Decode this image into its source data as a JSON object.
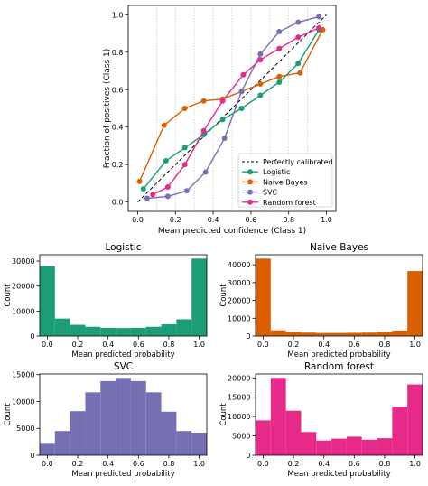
{
  "chart_data": [
    {
      "type": "line",
      "xlabel": "Mean predicted confidence (Class 1)",
      "ylabel": "Fraction of positives (Class 1)",
      "xlim": [
        -0.05,
        1.05
      ],
      "ylim": [
        -0.05,
        1.05
      ],
      "xticks": [
        "0.0",
        "0.2",
        "0.4",
        "0.6",
        "0.8",
        "1.0"
      ],
      "yticks": [
        "0.0",
        "0.2",
        "0.4",
        "0.6",
        "0.8",
        "1.0"
      ],
      "vertical_grid_x": [
        0.1,
        0.2,
        0.3,
        0.4,
        0.5,
        0.6,
        0.7,
        0.8,
        0.9
      ],
      "legend_position": "lower-right",
      "reference_line": {
        "name": "Perfectly calibrated",
        "x": [
          0,
          1
        ],
        "y": [
          0,
          1
        ],
        "style": "dashed",
        "color": "#000000"
      },
      "series": [
        {
          "name": "Logistic",
          "color": "#1b9e77",
          "x": [
            0.03,
            0.15,
            0.25,
            0.35,
            0.45,
            0.55,
            0.65,
            0.75,
            0.85,
            0.96
          ],
          "y": [
            0.07,
            0.22,
            0.29,
            0.36,
            0.44,
            0.5,
            0.57,
            0.64,
            0.74,
            0.92
          ]
        },
        {
          "name": "Naive Bayes",
          "color": "#d95f02",
          "x": [
            0.01,
            0.14,
            0.25,
            0.35,
            0.45,
            0.55,
            0.65,
            0.75,
            0.86,
            0.98
          ],
          "y": [
            0.11,
            0.41,
            0.5,
            0.54,
            0.55,
            0.59,
            0.63,
            0.67,
            0.69,
            0.92
          ]
        },
        {
          "name": "SVC",
          "color": "#7570b3",
          "x": [
            0.05,
            0.16,
            0.26,
            0.36,
            0.46,
            0.55,
            0.65,
            0.75,
            0.85,
            0.96
          ],
          "y": [
            0.02,
            0.03,
            0.06,
            0.16,
            0.34,
            0.59,
            0.79,
            0.91,
            0.96,
            0.99
          ]
        },
        {
          "name": "Random forest",
          "color": "#e7298a",
          "x": [
            0.08,
            0.16,
            0.25,
            0.35,
            0.45,
            0.56,
            0.65,
            0.75,
            0.85,
            0.96
          ],
          "y": [
            0.04,
            0.08,
            0.2,
            0.38,
            0.54,
            0.68,
            0.76,
            0.82,
            0.88,
            0.93
          ]
        }
      ]
    },
    {
      "type": "bar",
      "title": "Logistic",
      "color": "#1b9e77",
      "xlabel": "Mean predicted probability",
      "ylabel": "Count",
      "bins": [
        0.0,
        0.1,
        0.2,
        0.3,
        0.4,
        0.5,
        0.6,
        0.7,
        0.8,
        0.9,
        1.0
      ],
      "values": [
        28000,
        7000,
        4500,
        3700,
        3300,
        3200,
        3300,
        3700,
        4700,
        6700,
        31000
      ],
      "xlim": [
        -0.05,
        1.05
      ],
      "ylim": [
        0,
        32550
      ],
      "xticks": [
        "0.0",
        "0.2",
        "0.4",
        "0.6",
        "0.8",
        "1.0"
      ],
      "yticks": [
        "0",
        "10000",
        "20000",
        "30000"
      ]
    },
    {
      "type": "bar",
      "title": "Naive Bayes",
      "color": "#d95f02",
      "xlabel": "Mean predicted probability",
      "ylabel": "Count",
      "bins": [
        0.0,
        0.1,
        0.2,
        0.3,
        0.4,
        0.5,
        0.6,
        0.7,
        0.8,
        0.9,
        1.0
      ],
      "values": [
        43500,
        3200,
        2400,
        1900,
        1700,
        1700,
        1800,
        1900,
        2300,
        3100,
        36500
      ],
      "xlim": [
        -0.05,
        1.05
      ],
      "ylim": [
        0,
        45675
      ],
      "xticks": [
        "0.0",
        "0.2",
        "0.4",
        "0.6",
        "0.8",
        "1.0"
      ],
      "yticks": [
        "0",
        "10000",
        "20000",
        "30000",
        "40000"
      ]
    },
    {
      "type": "bar",
      "title": "SVC",
      "color": "#7570b3",
      "xlabel": "Mean predicted probability",
      "ylabel": "Count",
      "bins": [
        0.0,
        0.1,
        0.2,
        0.3,
        0.4,
        0.5,
        0.6,
        0.7,
        0.8,
        0.9,
        1.0
      ],
      "values": [
        2300,
        4500,
        8200,
        11700,
        13800,
        14400,
        13800,
        11700,
        8100,
        4500,
        4200
      ],
      "xlim": [
        -0.05,
        1.05
      ],
      "ylim": [
        0,
        15120
      ],
      "xticks": [
        "0.0",
        "0.2",
        "0.4",
        "0.6",
        "0.8",
        "1.0"
      ],
      "yticks": [
        "0",
        "5000",
        "10000",
        "15000"
      ]
    },
    {
      "type": "bar",
      "title": "Random forest",
      "color": "#e7298a",
      "xlabel": "Mean predicted probability",
      "ylabel": "Count",
      "bins": [
        0.0,
        0.1,
        0.2,
        0.3,
        0.4,
        0.5,
        0.6,
        0.7,
        0.8,
        0.9,
        1.0
      ],
      "values": [
        9000,
        20000,
        11500,
        6000,
        3800,
        4300,
        4800,
        4000,
        4400,
        12500,
        18300
      ],
      "xlim": [
        -0.05,
        1.05
      ],
      "ylim": [
        0,
        21000
      ],
      "xticks": [
        "0.0",
        "0.2",
        "0.4",
        "0.6",
        "0.8",
        "1.0"
      ],
      "yticks": [
        "0",
        "5000",
        "10000",
        "15000",
        "20000"
      ]
    }
  ]
}
